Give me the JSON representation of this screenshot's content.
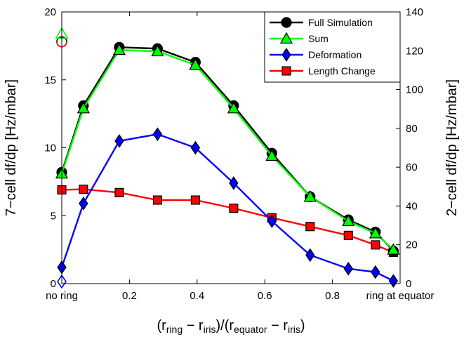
{
  "chart_data": {
    "type": "line",
    "ylabel_left": "7−cell df/dp [Hz/mbar]",
    "ylabel_right": "2−cell df/dp [Hz/mbar]",
    "xlabel": {
      "parts": [
        {
          "text": "(r",
          "sub": false
        },
        {
          "text": "ring",
          "sub": true
        },
        {
          "text": " − r",
          "sub": false
        },
        {
          "text": "iris",
          "sub": true
        },
        {
          "text": ")/(r",
          "sub": false
        },
        {
          "text": "equator",
          "sub": true
        },
        {
          "text": " − r",
          "sub": false
        },
        {
          "text": "iris",
          "sub": true
        },
        {
          "text": ")",
          "sub": false
        }
      ]
    },
    "xlim": [
      0,
      1
    ],
    "ylim_left": [
      0,
      20
    ],
    "ylim_right": [
      0,
      140
    ],
    "x_ticks": [
      {
        "value": 0,
        "label": "no ring"
      },
      {
        "value": 0.2,
        "label": "0.2"
      },
      {
        "value": 0.4,
        "label": "0.4"
      },
      {
        "value": 0.6,
        "label": "0.6"
      },
      {
        "value": 0.8,
        "label": "0.8"
      },
      {
        "value": 1,
        "label": "ring at equator"
      }
    ],
    "y_ticks_left": [
      "0",
      "5",
      "10",
      "15",
      "20"
    ],
    "y_ticks_right": [
      "0",
      "20",
      "40",
      "60",
      "80",
      "100",
      "120",
      "140"
    ],
    "legend_position": "top-right",
    "series": [
      {
        "name": "Full Simulation",
        "color": "#000000",
        "marker_fill": "#000000",
        "marker": "circle",
        "x": [
          0,
          0.064,
          0.17,
          0.283,
          0.395,
          0.508,
          0.621,
          0.734,
          0.847,
          0.927,
          0.98
        ],
        "y": [
          8.2,
          13.1,
          17.4,
          17.3,
          16.3,
          13.1,
          9.6,
          6.4,
          4.7,
          3.8,
          2.4
        ]
      },
      {
        "name": "Sum",
        "color": "#00ff00",
        "marker_fill": "#00ff00",
        "marker": "triangle",
        "x": [
          0,
          0.064,
          0.17,
          0.283,
          0.395,
          0.508,
          0.621,
          0.734,
          0.847,
          0.927,
          0.98
        ],
        "y": [
          8.1,
          12.9,
          17.2,
          17.1,
          16.1,
          12.9,
          9.4,
          6.4,
          4.6,
          3.7,
          2.5
        ]
      },
      {
        "name": "Deformation",
        "color": "#0000ff",
        "marker_fill": "#0000ff",
        "marker": "diamond",
        "x": [
          0,
          0.064,
          0.17,
          0.283,
          0.395,
          0.508,
          0.621,
          0.734,
          0.847,
          0.927,
          0.98
        ],
        "y": [
          1.2,
          5.9,
          10.5,
          11.0,
          10.0,
          7.4,
          4.6,
          2.1,
          1.1,
          0.85,
          0.2
        ]
      },
      {
        "name": "Length Change",
        "color": "#ff0000",
        "marker_fill": "#ff0000",
        "marker": "square",
        "x": [
          0,
          0.064,
          0.17,
          0.283,
          0.395,
          0.508,
          0.621,
          0.734,
          0.847,
          0.927,
          0.98
        ],
        "y": [
          6.9,
          6.95,
          6.7,
          6.15,
          6.15,
          5.55,
          4.85,
          4.2,
          3.55,
          2.85,
          2.3
        ]
      }
    ],
    "extra_points": [
      {
        "series": "Full Simulation",
        "x": 0,
        "y": 17.8,
        "marker": "circle",
        "hollow": true,
        "color": "#000000"
      },
      {
        "series": "Length Change",
        "x": 0,
        "y": 17.8,
        "marker": "circle-half",
        "hollow": true,
        "color": "#ff0000"
      },
      {
        "series": "Sum",
        "x": 0,
        "y": 18.4,
        "marker": "triangle",
        "hollow": true,
        "color": "#00ff00"
      },
      {
        "series": "Deformation",
        "x": 0,
        "y": 0.15,
        "marker": "diamond",
        "hollow": true,
        "color": "#0000ff"
      }
    ]
  }
}
